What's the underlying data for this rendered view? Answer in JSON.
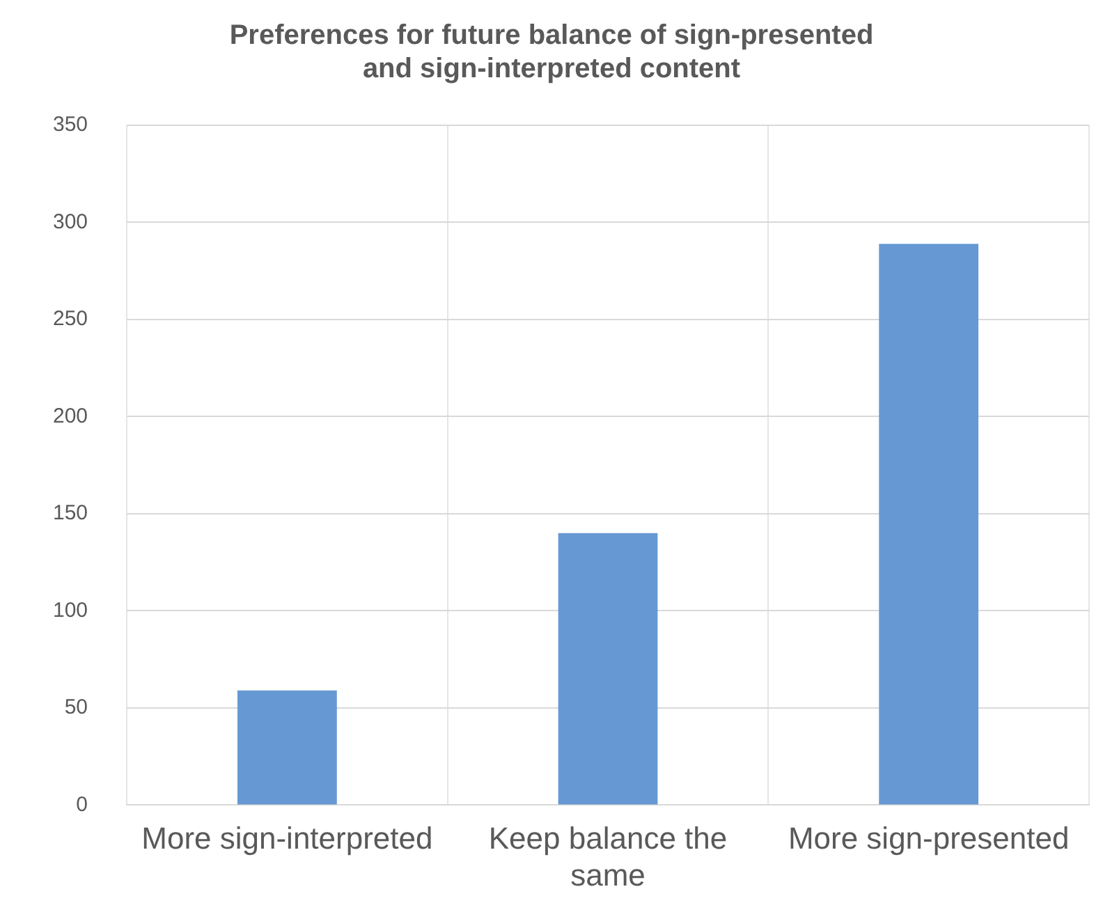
{
  "chart_data": {
    "type": "bar",
    "title": "Preferences for future balance of sign-presented and sign-interpreted content",
    "categories": [
      "More sign-interpreted",
      "Keep balance the same",
      "More sign-presented"
    ],
    "values": [
      59,
      140,
      289
    ],
    "color": "#6699d4",
    "ylim": [
      0,
      350
    ],
    "yticks": [
      0,
      50,
      100,
      150,
      200,
      250,
      300,
      350
    ],
    "grid": true
  }
}
